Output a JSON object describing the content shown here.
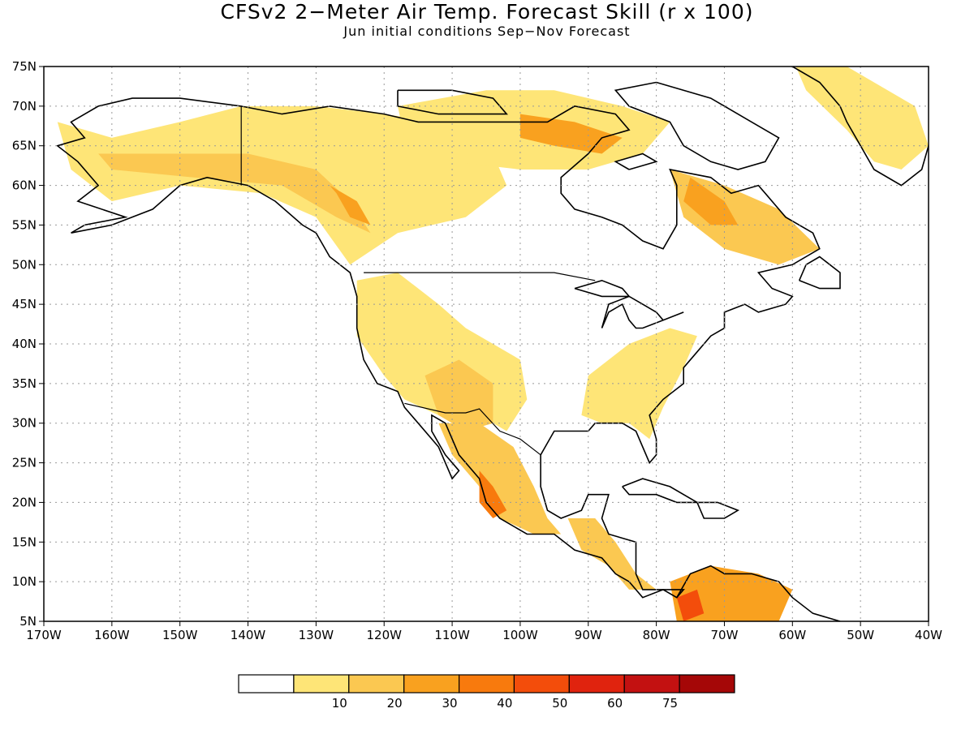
{
  "title": "CFSv2 2−Meter Air Temp. Forecast Skill (r x 100)",
  "subtitle": "Jun initial conditions  Sep−Nov Forecast",
  "axes": {
    "lon_range": [
      -170,
      -40
    ],
    "lat_range": [
      5,
      75
    ],
    "lon_labels": [
      "170W",
      "160W",
      "150W",
      "140W",
      "130W",
      "120W",
      "110W",
      "100W",
      "90W",
      "80W",
      "70W",
      "60W",
      "50W",
      "40W"
    ],
    "lat_labels": [
      "5N",
      "10N",
      "15N",
      "20N",
      "25N",
      "30N",
      "35N",
      "40N",
      "45N",
      "50N",
      "55N",
      "60N",
      "65N",
      "70N",
      "75N"
    ],
    "gridlines": "dotted"
  },
  "legend": {
    "placement": "bottom-center",
    "bins": [
      {
        "color": "#ffffff",
        "label": ""
      },
      {
        "color": "#fee577",
        "label": "10"
      },
      {
        "color": "#fbc851",
        "label": "20"
      },
      {
        "color": "#f9a11f",
        "label": "30"
      },
      {
        "color": "#f87a0d",
        "label": "40"
      },
      {
        "color": "#f34d0b",
        "label": "50"
      },
      {
        "color": "#e0230e",
        "label": "60"
      },
      {
        "color": "#c31111",
        "label": "75"
      },
      {
        "color": "#a50707",
        "label": ""
      }
    ]
  },
  "skill_regions": [
    {
      "name": "alaska",
      "level": 1,
      "lon_lat": [
        [
          -168,
          68
        ],
        [
          -160,
          66
        ],
        [
          -150,
          68
        ],
        [
          -141,
          70
        ],
        [
          -130,
          70
        ],
        [
          -120,
          69
        ],
        [
          -112,
          68
        ],
        [
          -105,
          66
        ],
        [
          -102,
          60
        ],
        [
          -108,
          56
        ],
        [
          -118,
          54
        ],
        [
          -125,
          50
        ],
        [
          -130,
          56
        ],
        [
          -138,
          59
        ],
        [
          -150,
          60
        ],
        [
          -160,
          58
        ],
        [
          -166,
          62
        ]
      ]
    },
    {
      "name": "alaska-band",
      "level": 2,
      "lon_lat": [
        [
          -162,
          64
        ],
        [
          -150,
          64
        ],
        [
          -140,
          64
        ],
        [
          -130,
          62
        ],
        [
          -125,
          58
        ],
        [
          -122,
          54
        ],
        [
          -127,
          56
        ],
        [
          -135,
          60
        ],
        [
          -148,
          61
        ],
        [
          -160,
          62
        ]
      ]
    },
    {
      "name": "yukon-core",
      "level": 3,
      "lon_lat": [
        [
          -128,
          60
        ],
        [
          -124,
          58
        ],
        [
          -122,
          55
        ],
        [
          -125,
          56
        ],
        [
          -127,
          59
        ]
      ]
    },
    {
      "name": "canada-arctic",
      "level": 1,
      "lon_lat": [
        [
          -118,
          70
        ],
        [
          -105,
          72
        ],
        [
          -95,
          72
        ],
        [
          -85,
          70
        ],
        [
          -78,
          68
        ],
        [
          -82,
          64
        ],
        [
          -90,
          62
        ],
        [
          -100,
          62
        ],
        [
          -110,
          63
        ],
        [
          -117,
          66
        ]
      ]
    },
    {
      "name": "arctic-core",
      "level": 3,
      "lon_lat": [
        [
          -100,
          69
        ],
        [
          -92,
          68
        ],
        [
          -85,
          66
        ],
        [
          -88,
          64
        ],
        [
          -95,
          65
        ],
        [
          -100,
          66
        ]
      ]
    },
    {
      "name": "greenland",
      "level": 1,
      "lon_lat": [
        [
          -60,
          76
        ],
        [
          -52,
          75
        ],
        [
          -42,
          70
        ],
        [
          -40,
          65
        ],
        [
          -44,
          62
        ],
        [
          -48,
          63
        ],
        [
          -52,
          67
        ],
        [
          -58,
          72
        ]
      ]
    },
    {
      "name": "labrador",
      "level": 2,
      "lon_lat": [
        [
          -78,
          62
        ],
        [
          -70,
          60
        ],
        [
          -62,
          57
        ],
        [
          -56,
          52
        ],
        [
          -62,
          50
        ],
        [
          -70,
          52
        ],
        [
          -76,
          56
        ]
      ]
    },
    {
      "name": "labrador-core",
      "level": 3,
      "lon_lat": [
        [
          -75,
          61
        ],
        [
          -70,
          58
        ],
        [
          -68,
          55
        ],
        [
          -72,
          55
        ],
        [
          -76,
          58
        ]
      ]
    },
    {
      "name": "us-west",
      "level": 1,
      "lon_lat": [
        [
          -124,
          48
        ],
        [
          -118,
          49
        ],
        [
          -112,
          45
        ],
        [
          -108,
          42
        ],
        [
          -104,
          40
        ],
        [
          -100,
          38
        ],
        [
          -99,
          33
        ],
        [
          -102,
          29
        ],
        [
          -106,
          31
        ],
        [
          -112,
          31
        ],
        [
          -117,
          33
        ],
        [
          -120,
          36
        ],
        [
          -124,
          41
        ]
      ]
    },
    {
      "name": "southwest-core",
      "level": 2,
      "lon_lat": [
        [
          -114,
          36
        ],
        [
          -109,
          38
        ],
        [
          -104,
          35
        ],
        [
          -104,
          30
        ],
        [
          -108,
          29
        ],
        [
          -112,
          31
        ]
      ]
    },
    {
      "name": "mexico",
      "level": 2,
      "lon_lat": [
        [
          -112,
          30
        ],
        [
          -106,
          30
        ],
        [
          -101,
          27
        ],
        [
          -98,
          22
        ],
        [
          -96,
          18
        ],
        [
          -94,
          16
        ],
        [
          -98,
          16
        ],
        [
          -103,
          18
        ],
        [
          -106,
          22
        ],
        [
          -110,
          26
        ]
      ]
    },
    {
      "name": "mexico-core",
      "level": 4,
      "lon_lat": [
        [
          -106,
          24
        ],
        [
          -104,
          22
        ],
        [
          -102,
          19
        ],
        [
          -104,
          18
        ],
        [
          -106,
          20
        ]
      ]
    },
    {
      "name": "east-us",
      "level": 1,
      "lon_lat": [
        [
          -90,
          36
        ],
        [
          -84,
          40
        ],
        [
          -78,
          42
        ],
        [
          -74,
          41
        ],
        [
          -76,
          37
        ],
        [
          -79,
          32
        ],
        [
          -81,
          28
        ],
        [
          -84,
          30
        ],
        [
          -88,
          30
        ],
        [
          -91,
          31
        ]
      ]
    },
    {
      "name": "central-america",
      "level": 2,
      "lon_lat": [
        [
          -93,
          18
        ],
        [
          -89,
          18
        ],
        [
          -86,
          15
        ],
        [
          -83,
          11
        ],
        [
          -80,
          9
        ],
        [
          -84,
          9
        ],
        [
          -87,
          12
        ],
        [
          -91,
          14
        ]
      ]
    },
    {
      "name": "south-america",
      "level": 3,
      "lon_lat": [
        [
          -78,
          10
        ],
        [
          -72,
          12
        ],
        [
          -65,
          11
        ],
        [
          -60,
          9
        ],
        [
          -62,
          5
        ],
        [
          -70,
          5
        ],
        [
          -77,
          5
        ]
      ]
    },
    {
      "name": "sa-core",
      "level": 5,
      "lon_lat": [
        [
          -77,
          8
        ],
        [
          -74,
          9
        ],
        [
          -73,
          6
        ],
        [
          -76,
          5
        ]
      ]
    }
  ]
}
